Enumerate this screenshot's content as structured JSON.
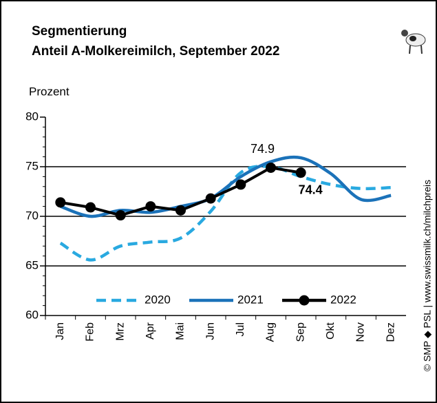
{
  "chart_data": {
    "type": "line",
    "title": "Segmentierung",
    "subtitle": "Anteil A-Molkereimilch, September 2022",
    "y_label": "Prozent",
    "source": "© SMP ◆ PSL | www.swissmilk.ch/milchpreis",
    "categories": [
      "Jan",
      "Feb",
      "Mrz",
      "Apr",
      "Mai",
      "Jun",
      "Jul",
      "Aug",
      "Sep",
      "Okt",
      "Nov",
      "Dez"
    ],
    "series": [
      {
        "name": "2020",
        "color": "#29a9e0",
        "style": "dashed",
        "values": [
          67.3,
          65.6,
          67.0,
          67.4,
          67.8,
          70.5,
          74.4,
          75.0,
          74.0,
          73.2,
          72.8,
          72.9
        ]
      },
      {
        "name": "2021",
        "color": "#1b72b9",
        "style": "solid",
        "values": [
          71.0,
          70.0,
          70.6,
          70.4,
          71.0,
          71.8,
          74.0,
          75.5,
          75.9,
          74.3,
          71.7,
          72.1
        ]
      },
      {
        "name": "2022",
        "color": "#000000",
        "style": "markers",
        "values": [
          71.4,
          70.9,
          70.1,
          71.0,
          70.6,
          71.8,
          73.2,
          74.9,
          74.4,
          null,
          null,
          null
        ]
      }
    ],
    "labeled_points": [
      7,
      8
    ],
    "ylim": [
      60,
      80
    ],
    "yticks": [
      60,
      65,
      70,
      75,
      80
    ],
    "grid": true,
    "legend": "bottom"
  }
}
